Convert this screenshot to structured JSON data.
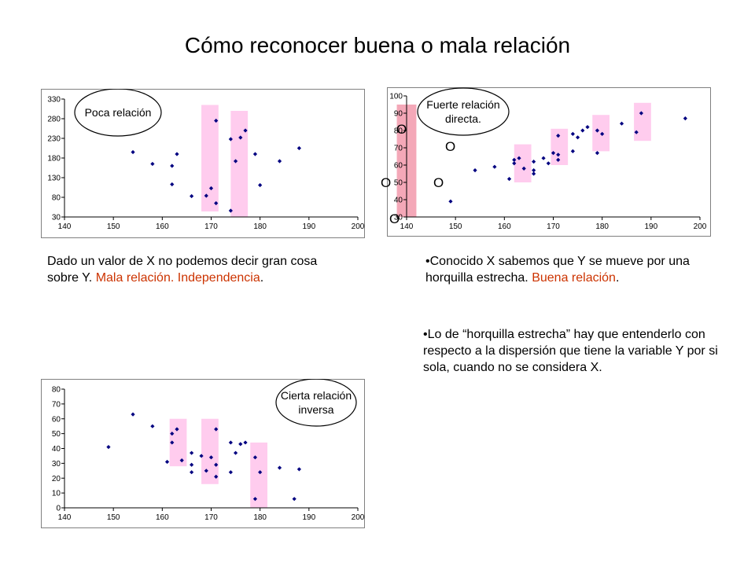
{
  "title": "Cómo reconocer buena o mala relación",
  "colors": {
    "accent_text": "#cc3300",
    "points": "#000080",
    "band": "#ffccee",
    "band_strong": "#f4a8b8"
  },
  "chart_data": [
    {
      "type": "scatter",
      "callout": [
        "Poca relación"
      ],
      "xlim": [
        140,
        200
      ],
      "ylim": [
        30,
        330
      ],
      "xticks": [
        140,
        150,
        160,
        170,
        180,
        190,
        200
      ],
      "yticks": [
        30,
        80,
        130,
        180,
        230,
        280,
        330
      ],
      "points": [
        [
          154,
          195
        ],
        [
          158,
          165
        ],
        [
          162,
          113
        ],
        [
          162,
          160
        ],
        [
          163,
          190
        ],
        [
          166,
          83
        ],
        [
          169,
          84
        ],
        [
          170,
          103
        ],
        [
          171,
          275
        ],
        [
          171,
          65
        ],
        [
          174,
          228
        ],
        [
          174,
          46
        ],
        [
          175,
          172
        ],
        [
          176,
          232
        ],
        [
          177,
          250
        ],
        [
          179,
          190
        ],
        [
          180,
          111
        ],
        [
          184,
          172
        ],
        [
          188,
          205
        ]
      ],
      "bands": [
        {
          "x0": 168,
          "x1": 171.5,
          "y0": 44,
          "y1": 315
        },
        {
          "x0": 174,
          "x1": 177.5,
          "y0": 30,
          "y1": 300
        }
      ],
      "grid": false,
      "legend": "none"
    },
    {
      "type": "scatter",
      "callout": [
        "Fuerte relación",
        "directa."
      ],
      "xlim": [
        140,
        200
      ],
      "ylim": [
        30,
        100
      ],
      "xticks": [
        140,
        150,
        160,
        170,
        180,
        190,
        200
      ],
      "yticks": [
        30,
        40,
        50,
        60,
        70,
        80,
        90,
        100
      ],
      "points": [
        [
          149,
          39
        ],
        [
          154,
          57
        ],
        [
          158,
          59
        ],
        [
          161,
          52
        ],
        [
          162,
          61
        ],
        [
          162,
          63
        ],
        [
          163,
          64
        ],
        [
          164,
          58
        ],
        [
          166,
          57
        ],
        [
          166,
          55
        ],
        [
          166,
          62
        ],
        [
          168,
          64
        ],
        [
          169,
          61
        ],
        [
          170,
          67
        ],
        [
          171,
          66
        ],
        [
          171,
          63
        ],
        [
          171,
          77
        ],
        [
          174,
          78
        ],
        [
          174,
          68
        ],
        [
          175,
          76
        ],
        [
          176,
          80
        ],
        [
          177,
          82
        ],
        [
          179,
          67
        ],
        [
          179,
          80
        ],
        [
          180,
          78
        ],
        [
          184,
          84
        ],
        [
          187,
          79
        ],
        [
          188,
          90
        ],
        [
          197,
          87
        ]
      ],
      "bands": [
        {
          "x0": 138,
          "x1": 142,
          "y0": 30,
          "y1": 95
        },
        {
          "x0": 162,
          "x1": 165.5,
          "y0": 50,
          "y1": 72
        },
        {
          "x0": 169.5,
          "x1": 173,
          "y0": 60,
          "y1": 81
        },
        {
          "x0": 178,
          "x1": 181.5,
          "y0": 68,
          "y1": 89
        },
        {
          "x0": 186.5,
          "x1": 190,
          "y0": 74,
          "y1": 96
        }
      ],
      "grid": false,
      "legend": "none"
    },
    {
      "type": "scatter",
      "callout": [
        "Cierta relación",
        "inversa"
      ],
      "xlim": [
        140,
        200
      ],
      "ylim": [
        0,
        80
      ],
      "xticks": [
        140,
        150,
        160,
        170,
        180,
        190,
        200
      ],
      "yticks": [
        0,
        10,
        20,
        30,
        40,
        50,
        60,
        70,
        80
      ],
      "points": [
        [
          149,
          41
        ],
        [
          154,
          63
        ],
        [
          158,
          55
        ],
        [
          161,
          31
        ],
        [
          162,
          50
        ],
        [
          162,
          44
        ],
        [
          163,
          53
        ],
        [
          164,
          32
        ],
        [
          166,
          37
        ],
        [
          166,
          29
        ],
        [
          166,
          24
        ],
        [
          168,
          35
        ],
        [
          169,
          25
        ],
        [
          170,
          34
        ],
        [
          171,
          53
        ],
        [
          171,
          29
        ],
        [
          171,
          21
        ],
        [
          174,
          44
        ],
        [
          174,
          24
        ],
        [
          175,
          37
        ],
        [
          176,
          43
        ],
        [
          177,
          44
        ],
        [
          179,
          34
        ],
        [
          179,
          6
        ],
        [
          180,
          24
        ],
        [
          184,
          27
        ],
        [
          187,
          6
        ],
        [
          188,
          26
        ]
      ],
      "bands": [
        {
          "x0": 161.5,
          "x1": 165,
          "y0": 28,
          "y1": 60
        },
        {
          "x0": 168,
          "x1": 171.5,
          "y0": 16,
          "y1": 60
        },
        {
          "x0": 178,
          "x1": 181.5,
          "y0": 0,
          "y1": 44
        }
      ],
      "grid": false,
      "legend": "none"
    }
  ],
  "stray_marks": [
    "O",
    "O",
    "O",
    "O",
    "O"
  ],
  "texts": {
    "left": {
      "body": "Dado un valor de X no podemos decir gran cosa sobre Y.",
      "red1": "Mala relación.",
      "red2": "Independencia",
      "end": "."
    },
    "right1": {
      "bullet": "•",
      "body": "Conocido  X sabemos que Y se mueve por una horquilla estrecha.",
      "red": "Buena relación",
      "end": "."
    },
    "right2": {
      "bullet": "•",
      "body": "Lo de “horquilla estrecha” hay que entenderlo con respecto a la dispersión que tiene la variable Y por si sola, cuando no se considera X."
    }
  }
}
